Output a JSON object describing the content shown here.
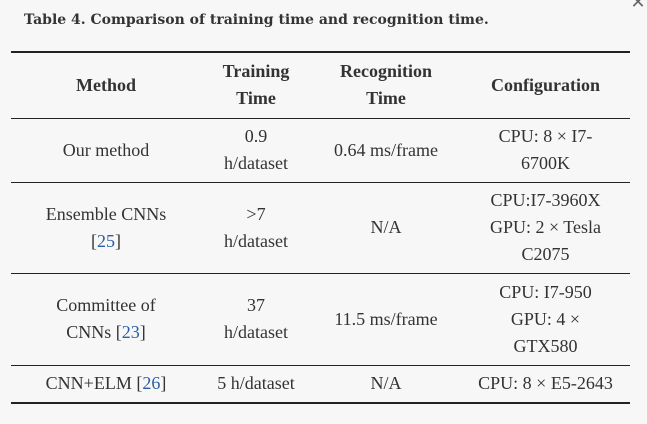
{
  "caption": "Table 4. Comparison of training time and recognition time.",
  "close_glyph": "✕",
  "table": {
    "headers": {
      "method": "Method",
      "training": [
        "Training",
        "Time"
      ],
      "recognition": [
        "Recognition",
        "Time"
      ],
      "configuration": "Configuration"
    },
    "rows": [
      {
        "method": "Our method",
        "method_cite": "",
        "training": [
          "0.9",
          "h/dataset"
        ],
        "recognition": "0.64 ms/frame",
        "configuration": [
          "CPU: 8 × I7-",
          "6700K"
        ]
      },
      {
        "method": "Ensemble CNNs",
        "method_cite": "25",
        "training": [
          ">7",
          "h/dataset"
        ],
        "recognition": "N/A",
        "configuration": [
          "CPU:I7-3960X",
          "GPU: 2 × Tesla",
          "C2075"
        ]
      },
      {
        "method": "Committee of",
        "method_line2": "CNNs",
        "method_cite": "23",
        "training": [
          "37",
          "h/dataset"
        ],
        "recognition": "11.5 ms/frame",
        "configuration": [
          "CPU: I7-950",
          "GPU: 4 ×",
          "GTX580"
        ]
      },
      {
        "method": "CNN+ELM",
        "method_cite": "26",
        "training": [
          "5 h/dataset"
        ],
        "recognition": "N/A",
        "configuration": [
          "CPU: 8 × E5-2643"
        ]
      }
    ]
  },
  "colors": {
    "text": "#333333",
    "citation": "#2a5da8",
    "rule": "#222222",
    "background": "#f7f7f7"
  }
}
